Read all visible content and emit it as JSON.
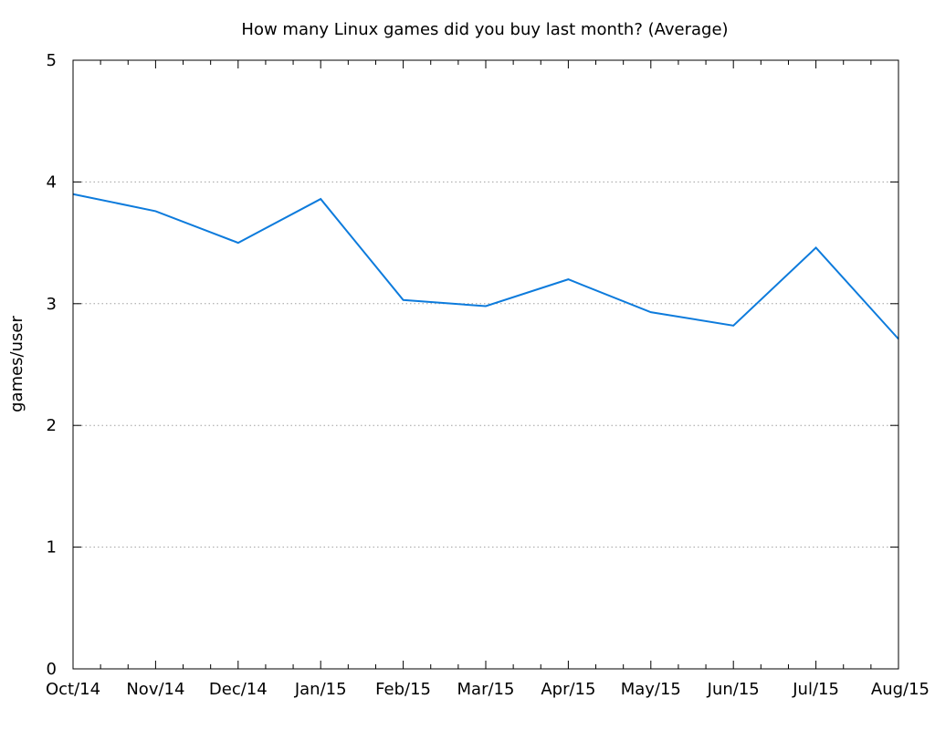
{
  "chart_data": {
    "type": "line",
    "title": "How many Linux games did you buy last month? (Average)",
    "xlabel": "",
    "ylabel": "games/user",
    "x_ticks": [
      "Oct/14",
      "Nov/14",
      "Dec/14",
      "Jan/15",
      "Feb/15",
      "Mar/15",
      "Apr/15",
      "May/15",
      "Jun/15",
      "Jul/15",
      "Aug/15"
    ],
    "ylim": [
      0,
      5
    ],
    "y_ticks": [
      "0",
      "1",
      "2",
      "3",
      "4",
      "5"
    ],
    "grid": "horizontal dotted",
    "series": [
      {
        "color": "#0d7bdc",
        "values": [
          3.9,
          3.76,
          3.5,
          3.86,
          3.03,
          2.98,
          3.2,
          2.93,
          2.82,
          3.46,
          2.71
        ]
      }
    ]
  }
}
